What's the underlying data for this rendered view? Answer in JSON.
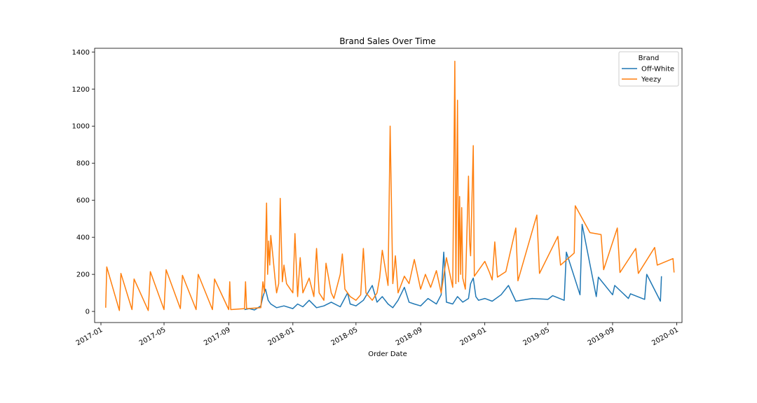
{
  "chart_data": {
    "type": "line",
    "title": "Brand Sales Over Time",
    "xlabel": "Order Date",
    "ylabel": "",
    "ylim": [
      -60,
      1420
    ],
    "xlim": [
      "2016-12-20",
      "2020-01-11"
    ],
    "y_ticks": [
      0,
      200,
      400,
      600,
      800,
      1000,
      1200,
      1400
    ],
    "x_ticks": [
      "2017-01",
      "2017-05",
      "2017-09",
      "2018-01",
      "2018-05",
      "2018-09",
      "2019-01",
      "2019-05",
      "2019-09",
      "2020-01"
    ],
    "grid": false,
    "legend": {
      "title": "Brand",
      "position": "top-right"
    },
    "series": [
      {
        "name": "Off-White",
        "color": "#1f77b4",
        "points": [
          [
            "2017-10-01",
            10
          ],
          [
            "2017-10-10",
            15
          ],
          [
            "2017-10-20",
            8
          ],
          [
            "2017-11-01",
            30
          ],
          [
            "2017-11-05",
            80
          ],
          [
            "2017-11-10",
            120
          ],
          [
            "2017-11-15",
            60
          ],
          [
            "2017-11-20",
            40
          ],
          [
            "2017-12-01",
            20
          ],
          [
            "2017-12-15",
            30
          ],
          [
            "2018-01-01",
            15
          ],
          [
            "2018-01-10",
            40
          ],
          [
            "2018-01-20",
            25
          ],
          [
            "2018-02-01",
            60
          ],
          [
            "2018-02-15",
            20
          ],
          [
            "2018-03-01",
            30
          ],
          [
            "2018-03-15",
            50
          ],
          [
            "2018-04-01",
            25
          ],
          [
            "2018-04-15",
            100
          ],
          [
            "2018-04-20",
            40
          ],
          [
            "2018-05-01",
            30
          ],
          [
            "2018-05-15",
            60
          ],
          [
            "2018-06-01",
            140
          ],
          [
            "2018-06-10",
            50
          ],
          [
            "2018-06-20",
            80
          ],
          [
            "2018-07-01",
            40
          ],
          [
            "2018-07-10",
            20
          ],
          [
            "2018-07-20",
            60
          ],
          [
            "2018-08-01",
            130
          ],
          [
            "2018-08-10",
            50
          ],
          [
            "2018-08-20",
            40
          ],
          [
            "2018-09-01",
            30
          ],
          [
            "2018-09-15",
            70
          ],
          [
            "2018-10-01",
            40
          ],
          [
            "2018-10-10",
            90
          ],
          [
            "2018-10-15",
            320
          ],
          [
            "2018-10-20",
            50
          ],
          [
            "2018-11-01",
            40
          ],
          [
            "2018-11-10",
            80
          ],
          [
            "2018-11-20",
            50
          ],
          [
            "2018-12-01",
            70
          ],
          [
            "2018-12-05",
            150
          ],
          [
            "2018-12-10",
            180
          ],
          [
            "2018-12-15",
            80
          ],
          [
            "2018-12-20",
            60
          ],
          [
            "2019-01-01",
            70
          ],
          [
            "2019-01-15",
            55
          ],
          [
            "2019-02-01",
            90
          ],
          [
            "2019-02-15",
            140
          ],
          [
            "2019-03-01",
            55
          ],
          [
            "2019-04-01",
            70
          ],
          [
            "2019-05-01",
            65
          ],
          [
            "2019-05-10",
            85
          ],
          [
            "2019-06-01",
            60
          ],
          [
            "2019-06-05",
            320
          ],
          [
            "2019-07-01",
            90
          ],
          [
            "2019-07-05",
            470
          ],
          [
            "2019-08-01",
            80
          ],
          [
            "2019-08-05",
            185
          ],
          [
            "2019-09-01",
            90
          ],
          [
            "2019-09-05",
            140
          ],
          [
            "2019-10-01",
            70
          ],
          [
            "2019-10-05",
            95
          ],
          [
            "2019-11-01",
            65
          ],
          [
            "2019-11-05",
            200
          ],
          [
            "2019-12-01",
            55
          ],
          [
            "2019-12-03",
            190
          ]
        ]
      },
      {
        "name": "Yeezy",
        "color": "#ff7f0e",
        "points": [
          [
            "2017-01-10",
            20
          ],
          [
            "2017-01-12",
            240
          ],
          [
            "2017-02-05",
            5
          ],
          [
            "2017-02-08",
            205
          ],
          [
            "2017-03-01",
            10
          ],
          [
            "2017-03-05",
            175
          ],
          [
            "2017-04-01",
            5
          ],
          [
            "2017-04-05",
            215
          ],
          [
            "2017-05-01",
            10
          ],
          [
            "2017-05-05",
            225
          ],
          [
            "2017-06-01",
            15
          ],
          [
            "2017-06-05",
            195
          ],
          [
            "2017-07-01",
            10
          ],
          [
            "2017-07-05",
            200
          ],
          [
            "2017-08-01",
            10
          ],
          [
            "2017-08-05",
            175
          ],
          [
            "2017-09-01",
            10
          ],
          [
            "2017-09-03",
            160
          ],
          [
            "2017-09-05",
            10
          ],
          [
            "2017-10-01",
            15
          ],
          [
            "2017-10-03",
            160
          ],
          [
            "2017-10-05",
            15
          ],
          [
            "2017-11-01",
            20
          ],
          [
            "2017-11-05",
            160
          ],
          [
            "2017-11-08",
            100
          ],
          [
            "2017-11-12",
            585
          ],
          [
            "2017-11-14",
            200
          ],
          [
            "2017-11-16",
            380
          ],
          [
            "2017-11-18",
            250
          ],
          [
            "2017-11-20",
            410
          ],
          [
            "2017-11-24",
            300
          ],
          [
            "2017-11-28",
            180
          ],
          [
            "2017-12-01",
            100
          ],
          [
            "2017-12-05",
            150
          ],
          [
            "2017-12-08",
            610
          ],
          [
            "2017-12-12",
            160
          ],
          [
            "2017-12-15",
            250
          ],
          [
            "2017-12-20",
            150
          ],
          [
            "2018-01-01",
            100
          ],
          [
            "2018-01-05",
            420
          ],
          [
            "2018-01-10",
            80
          ],
          [
            "2018-01-15",
            290
          ],
          [
            "2018-01-20",
            100
          ],
          [
            "2018-02-01",
            180
          ],
          [
            "2018-02-10",
            80
          ],
          [
            "2018-02-15",
            340
          ],
          [
            "2018-02-20",
            100
          ],
          [
            "2018-03-01",
            60
          ],
          [
            "2018-03-05",
            260
          ],
          [
            "2018-03-15",
            100
          ],
          [
            "2018-03-20",
            70
          ],
          [
            "2018-04-01",
            200
          ],
          [
            "2018-04-05",
            310
          ],
          [
            "2018-04-10",
            120
          ],
          [
            "2018-04-20",
            80
          ],
          [
            "2018-05-01",
            60
          ],
          [
            "2018-05-10",
            90
          ],
          [
            "2018-05-15",
            340
          ],
          [
            "2018-05-20",
            100
          ],
          [
            "2018-06-01",
            60
          ],
          [
            "2018-06-10",
            100
          ],
          [
            "2018-06-15",
            180
          ],
          [
            "2018-06-20",
            330
          ],
          [
            "2018-07-01",
            140
          ],
          [
            "2018-07-05",
            1000
          ],
          [
            "2018-07-10",
            150
          ],
          [
            "2018-07-15",
            300
          ],
          [
            "2018-07-20",
            100
          ],
          [
            "2018-08-01",
            190
          ],
          [
            "2018-08-10",
            150
          ],
          [
            "2018-08-20",
            280
          ],
          [
            "2018-09-01",
            120
          ],
          [
            "2018-09-10",
            200
          ],
          [
            "2018-09-20",
            130
          ],
          [
            "2018-10-01",
            220
          ],
          [
            "2018-10-10",
            100
          ],
          [
            "2018-10-20",
            290
          ],
          [
            "2018-11-01",
            130
          ],
          [
            "2018-11-05",
            1350
          ],
          [
            "2018-11-07",
            150
          ],
          [
            "2018-11-10",
            1140
          ],
          [
            "2018-11-12",
            160
          ],
          [
            "2018-11-14",
            620
          ],
          [
            "2018-11-16",
            200
          ],
          [
            "2018-11-18",
            560
          ],
          [
            "2018-11-20",
            180
          ],
          [
            "2018-11-25",
            120
          ],
          [
            "2018-12-01",
            730
          ],
          [
            "2018-12-03",
            380
          ],
          [
            "2018-12-05",
            300
          ],
          [
            "2018-12-10",
            895
          ],
          [
            "2018-12-12",
            190
          ],
          [
            "2019-01-01",
            270
          ],
          [
            "2019-01-10",
            210
          ],
          [
            "2019-01-15",
            170
          ],
          [
            "2019-01-20",
            375
          ],
          [
            "2019-01-25",
            185
          ],
          [
            "2019-02-10",
            215
          ],
          [
            "2019-03-01",
            450
          ],
          [
            "2019-03-05",
            165
          ],
          [
            "2019-04-10",
            520
          ],
          [
            "2019-04-15",
            205
          ],
          [
            "2019-05-20",
            405
          ],
          [
            "2019-05-25",
            250
          ],
          [
            "2019-06-20",
            315
          ],
          [
            "2019-06-22",
            570
          ],
          [
            "2019-07-20",
            425
          ],
          [
            "2019-08-10",
            415
          ],
          [
            "2019-08-15",
            225
          ],
          [
            "2019-09-10",
            450
          ],
          [
            "2019-09-15",
            210
          ],
          [
            "2019-10-15",
            340
          ],
          [
            "2019-10-20",
            205
          ],
          [
            "2019-11-20",
            345
          ],
          [
            "2019-11-25",
            250
          ],
          [
            "2019-12-25",
            285
          ],
          [
            "2019-12-27",
            210
          ]
        ]
      }
    ]
  }
}
